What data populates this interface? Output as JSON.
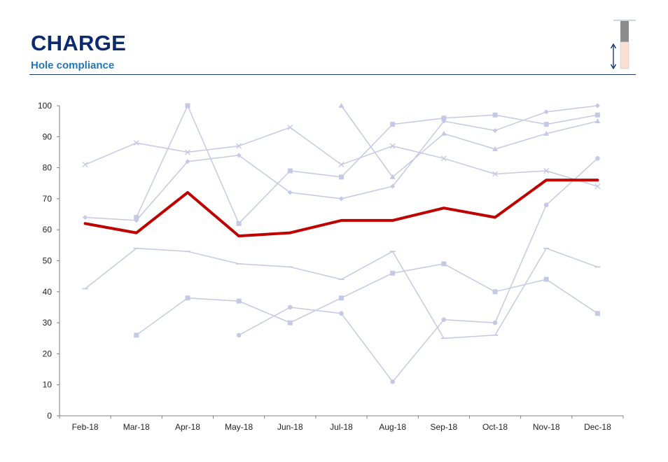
{
  "header": {
    "title": "CHARGE",
    "subtitle": "Hole compliance"
  },
  "gauge": {
    "icon": "vertical-double-arrow-icon",
    "colors": {
      "upper": "#8c8c8c",
      "lower": "#fbe0d2",
      "arrow": "#0b2a6f",
      "frame": "#b8c7d9"
    }
  },
  "colors": {
    "highlight": "#c00000",
    "background_series": "#c5c9e4",
    "axis": "#7f7f7f",
    "title": "#0b2a6f",
    "subtitle": "#1f78b4"
  },
  "chart_data": {
    "type": "line",
    "title": "",
    "xlabel": "",
    "ylabel": "",
    "categories": [
      "Feb-18",
      "Mar-18",
      "Apr-18",
      "May-18",
      "Jun-18",
      "Jul-18",
      "Aug-18",
      "Sep-18",
      "Oct-18",
      "Nov-18",
      "Dec-18"
    ],
    "ylim": [
      0,
      100
    ],
    "yticks": [
      0,
      10,
      20,
      30,
      40,
      50,
      60,
      70,
      80,
      90,
      100
    ],
    "grid": false,
    "legend": "none",
    "series": [
      {
        "marker": "diamond",
        "highlight": false,
        "values": [
          64,
          63,
          82,
          84,
          72,
          70,
          74,
          95,
          92,
          98,
          100
        ]
      },
      {
        "marker": "square",
        "highlight": false,
        "values": [
          null,
          64,
          100,
          62,
          79,
          77,
          94,
          96,
          97,
          94,
          97
        ]
      },
      {
        "marker": "triangle",
        "highlight": false,
        "values": [
          null,
          null,
          null,
          null,
          null,
          100,
          77,
          91,
          86,
          91,
          95
        ]
      },
      {
        "marker": "x",
        "highlight": false,
        "values": [
          81,
          88,
          85,
          87,
          93,
          81,
          87,
          83,
          78,
          79,
          74
        ]
      },
      {
        "marker": "dash",
        "highlight": false,
        "values": [
          41,
          54,
          53,
          49,
          48,
          44,
          53,
          25,
          26,
          54,
          48
        ]
      },
      {
        "marker": "square",
        "highlight": false,
        "values": [
          null,
          26,
          38,
          37,
          30,
          38,
          46,
          49,
          40,
          44,
          33
        ]
      },
      {
        "marker": "circle",
        "highlight": false,
        "values": [
          null,
          null,
          null,
          26,
          35,
          33,
          11,
          31,
          30,
          68,
          83
        ]
      },
      {
        "marker": "none",
        "highlight": true,
        "values": [
          62,
          59,
          72,
          58,
          59,
          63,
          63,
          67,
          64,
          76,
          76
        ]
      }
    ]
  }
}
